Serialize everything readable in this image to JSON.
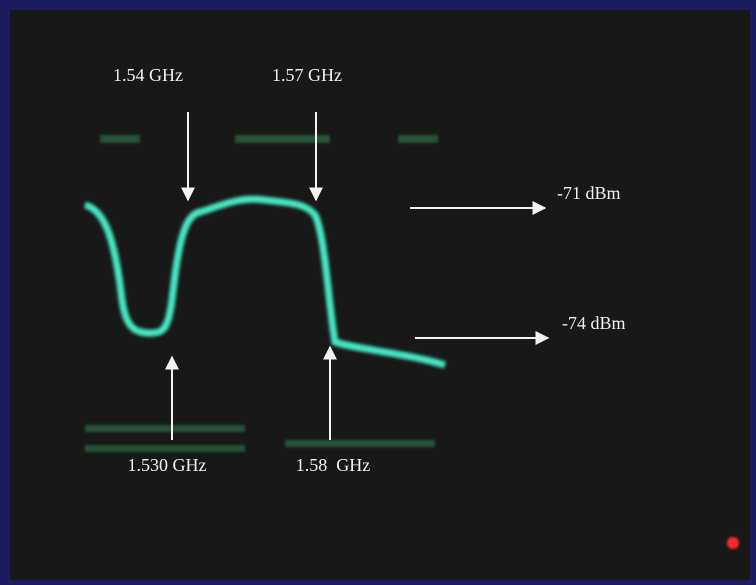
{
  "labels": [
    "1.54 GHz",
    "1.57 GHz",
    "-71 dBm",
    "-74 dBm",
    "1.530 GHz",
    "1.58  GHz"
  ]
}
